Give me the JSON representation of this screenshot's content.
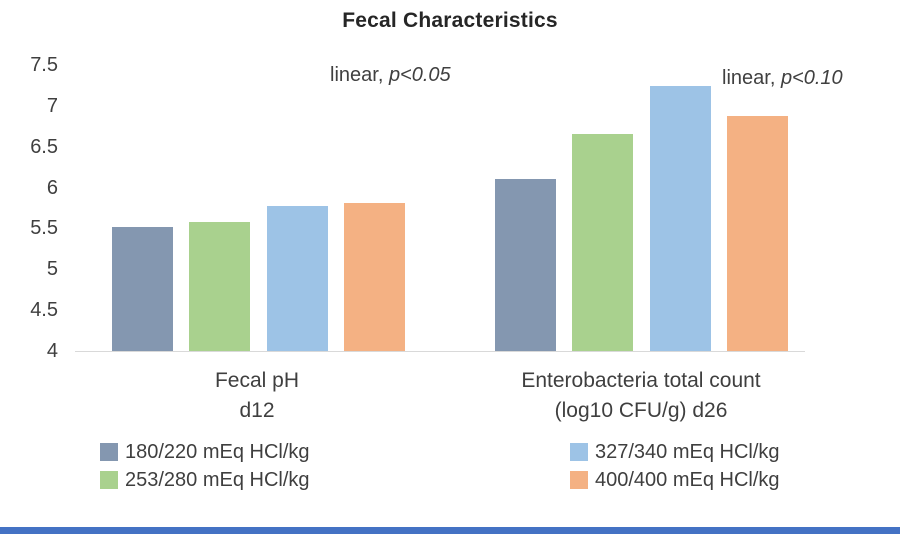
{
  "title": "Fecal Characteristics",
  "chart_data": {
    "type": "bar",
    "title": "Fecal Characteristics",
    "categories": [
      "Fecal pH d12",
      "Enterobacteria total count (log10 CFU/g) d26"
    ],
    "series": [
      {
        "name": "180/220 mEq HCl/kg",
        "color": "#8497B0",
        "values": [
          5.52,
          6.1
        ]
      },
      {
        "name": "253/280 mEq HCl/kg",
        "color": "#A9D18E",
        "values": [
          5.58,
          6.65
        ]
      },
      {
        "name": "327/340 mEq HCl/kg",
        "color": "#9DC3E6",
        "values": [
          5.77,
          7.24
        ]
      },
      {
        "name": "400/400 mEq HCl/kg",
        "color": "#F4B183",
        "values": [
          5.81,
          6.88
        ]
      }
    ],
    "ylim": [
      4,
      7.5
    ],
    "yticks": [
      7.5,
      7,
      6.5,
      6,
      5.5,
      5,
      4.5,
      4
    ],
    "grid": false,
    "legend_position": "bottom",
    "annotations": [
      {
        "text": "linear, p<0.05",
        "prefix": "linear, ",
        "italic": "p<0.05",
        "target": "Fecal pH d12"
      },
      {
        "text": "linear, p<0.10",
        "prefix": "linear, ",
        "italic": "p<0.10",
        "target": "Enterobacteria total count (log10 CFU/g) d26"
      }
    ]
  },
  "categories_display": [
    {
      "line1": "Fecal pH",
      "line2": "d12"
    },
    {
      "line1": "Enterobacteria total count",
      "line2": "(log10 CFU/g) d26"
    }
  ],
  "colors": {
    "footer_bar": "#4472C4",
    "axis_line": "#D9D9D9"
  }
}
